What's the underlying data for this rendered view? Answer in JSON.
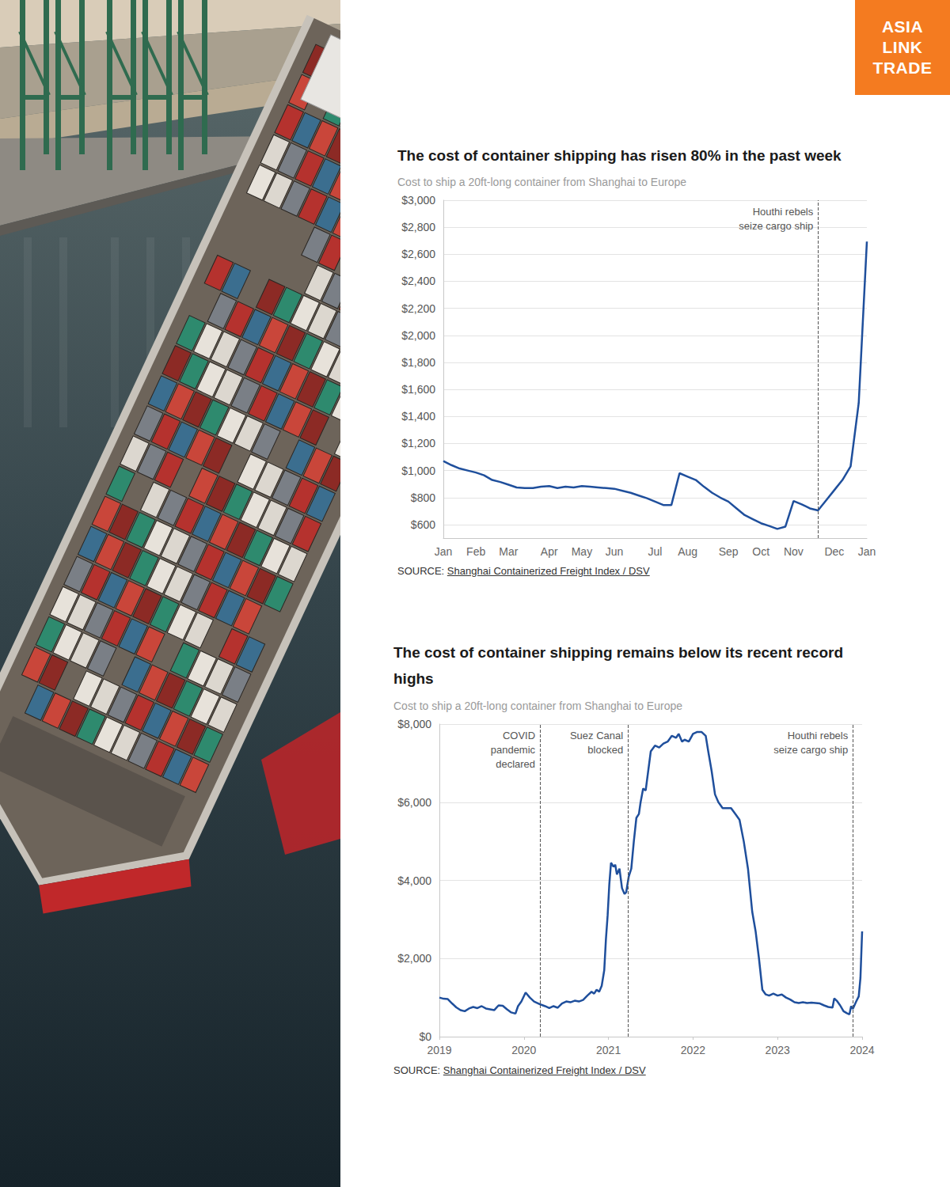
{
  "brand": "ASIA LINK TRADE",
  "chart_data": [
    {
      "type": "line",
      "title": "The cost of container shipping has risen 80% in the past week",
      "subtitle": "Cost to ship a 20ft-long container from Shanghai to Europe",
      "source_label": "SOURCE:",
      "source": "Shanghai Containerized Freight Index / DSV",
      "color": "#1f4f9c",
      "marker": "none",
      "grid": true,
      "categories": [
        "Jan",
        null,
        null,
        null,
        "Feb",
        null,
        null,
        null,
        "Mar",
        null,
        null,
        null,
        null,
        "Apr",
        null,
        null,
        null,
        "May",
        null,
        null,
        null,
        "Jun",
        null,
        null,
        null,
        null,
        "Jul",
        null,
        null,
        null,
        "Aug",
        null,
        null,
        null,
        null,
        "Sep",
        null,
        null,
        null,
        "Oct",
        null,
        null,
        null,
        "Nov",
        null,
        null,
        null,
        null,
        "Dec",
        null,
        null,
        null,
        "Jan"
      ],
      "values": [
        1070,
        1040,
        1015,
        1000,
        985,
        965,
        930,
        915,
        895,
        875,
        870,
        870,
        880,
        885,
        870,
        880,
        875,
        885,
        880,
        875,
        870,
        865,
        850,
        835,
        815,
        795,
        770,
        745,
        745,
        980,
        955,
        930,
        880,
        835,
        800,
        770,
        720,
        670,
        640,
        610,
        590,
        568,
        585,
        775,
        750,
        720,
        705,
        780,
        855,
        930,
        1030,
        1500,
        2694
      ],
      "ylim": [
        500,
        3000
      ],
      "yticks": [
        {
          "value": 600,
          "label": "$600"
        },
        {
          "value": 800,
          "label": "$800"
        },
        {
          "value": 1000,
          "label": "$1,000"
        },
        {
          "value": 1200,
          "label": "$1,200"
        },
        {
          "value": 1400,
          "label": "$1,400"
        },
        {
          "value": 1600,
          "label": "$1,600"
        },
        {
          "value": 1800,
          "label": "$1,800"
        },
        {
          "value": 2000,
          "label": "$2,000"
        },
        {
          "value": 2200,
          "label": "$2,200"
        },
        {
          "value": 2400,
          "label": "$2,400"
        },
        {
          "value": 2600,
          "label": "$2,600"
        },
        {
          "value": 2800,
          "label": "$2,800"
        },
        {
          "value": 3000,
          "label": "$3,000"
        }
      ],
      "annotations": [
        {
          "x": 46,
          "label": "Houthi rebels\nseize cargo ship",
          "line_style": "dashed"
        }
      ]
    },
    {
      "type": "line",
      "title": "The cost of container shipping remains below its recent record highs",
      "subtitle": "Cost to ship a 20ft-long container from Shanghai to Europe",
      "source_label": "SOURCE:",
      "source": "Shanghai Containerized Freight Index / DSV",
      "color": "#1f4f9c",
      "marker": "none",
      "grid": true,
      "x": [
        2019,
        2019.05,
        2019.1,
        2019.15,
        2019.2,
        2019.25,
        2019.3,
        2019.35,
        2019.4,
        2019.45,
        2019.5,
        2019.55,
        2019.6,
        2019.65,
        2019.7,
        2019.75,
        2019.8,
        2019.85,
        2019.9,
        2019.93,
        2019.97,
        2020.02,
        2020.07,
        2020.12,
        2020.2,
        2020.25,
        2020.3,
        2020.35,
        2020.4,
        2020.45,
        2020.5,
        2020.55,
        2020.6,
        2020.65,
        2020.7,
        2020.75,
        2020.8,
        2020.83,
        2020.86,
        2020.89,
        2020.92,
        2020.95,
        2020.97,
        2020.99,
        2021.01,
        2021.03,
        2021.06,
        2021.08,
        2021.1,
        2021.13,
        2021.16,
        2021.19,
        2021.21,
        2021.24,
        2021.27,
        2021.3,
        2021.33,
        2021.36,
        2021.38,
        2021.41,
        2021.44,
        2021.47,
        2021.5,
        2021.55,
        2021.6,
        2021.65,
        2021.7,
        2021.75,
        2021.8,
        2021.83,
        2021.87,
        2021.9,
        2021.95,
        2022,
        2022.05,
        2022.1,
        2022.15,
        2022.18,
        2022.22,
        2022.26,
        2022.3,
        2022.35,
        2022.45,
        2022.5,
        2022.55,
        2022.6,
        2022.65,
        2022.7,
        2022.74,
        2022.78,
        2022.82,
        2022.86,
        2022.9,
        2022.95,
        2023,
        2023.05,
        2023.1,
        2023.15,
        2023.2,
        2023.25,
        2023.3,
        2023.35,
        2023.4,
        2023.45,
        2023.5,
        2023.55,
        2023.6,
        2023.65,
        2023.67,
        2023.7,
        2023.74,
        2023.78,
        2023.82,
        2023.85,
        2023.87,
        2023.89,
        2023.93,
        2023.96,
        2023.98,
        2024
      ],
      "values": [
        1000,
        970,
        960,
        850,
        750,
        680,
        650,
        720,
        760,
        730,
        780,
        720,
        700,
        680,
        800,
        790,
        700,
        620,
        590,
        780,
        900,
        1130,
        1000,
        900,
        820,
        780,
        730,
        780,
        740,
        850,
        900,
        880,
        920,
        900,
        940,
        1050,
        1150,
        1100,
        1200,
        1150,
        1300,
        1700,
        2500,
        3100,
        3900,
        4450,
        4350,
        4400,
        4150,
        4300,
        3800,
        3650,
        3700,
        4100,
        4300,
        5000,
        5600,
        5700,
        6000,
        6350,
        6300,
        6800,
        7300,
        7450,
        7400,
        7500,
        7550,
        7700,
        7650,
        7750,
        7550,
        7600,
        7550,
        7750,
        7800,
        7800,
        7700,
        7300,
        6800,
        6200,
        6000,
        5850,
        5850,
        5700,
        5550,
        5000,
        4300,
        3200,
        2700,
        2000,
        1200,
        1080,
        1050,
        1100,
        1050,
        1080,
        1000,
        950,
        880,
        860,
        880,
        860,
        870,
        860,
        850,
        800,
        760,
        745,
        980,
        920,
        800,
        650,
        600,
        570,
        780,
        710,
        900,
        1030,
        1500,
        2694
      ],
      "xlim": [
        2019,
        2024
      ],
      "xticks": [
        2019,
        2020,
        2021,
        2022,
        2023,
        2024
      ],
      "ylim": [
        0,
        8000
      ],
      "yticks": [
        {
          "value": 0,
          "label": "$0"
        },
        {
          "value": 2000,
          "label": "$2,000"
        },
        {
          "value": 4000,
          "label": "$4,000"
        },
        {
          "value": 6000,
          "label": "$6,000"
        },
        {
          "value": 8000,
          "label": "$8,000"
        }
      ],
      "annotations": [
        {
          "x": 2020.19,
          "label": "COVID\npandemic\ndeclared",
          "line_style": "dashed"
        },
        {
          "x": 2021.23,
          "label": "Suez Canal\nblocked",
          "line_style": "dashed"
        },
        {
          "x": 2023.89,
          "label": "Houthi rebels\nseize cargo ship",
          "line_style": "dashed"
        }
      ]
    }
  ]
}
